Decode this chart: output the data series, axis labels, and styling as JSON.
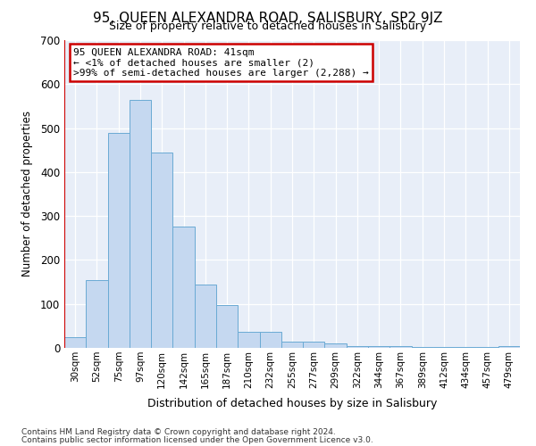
{
  "title": "95, QUEEN ALEXANDRA ROAD, SALISBURY, SP2 9JZ",
  "subtitle": "Size of property relative to detached houses in Salisbury",
  "xlabel": "Distribution of detached houses by size in Salisbury",
  "ylabel": "Number of detached properties",
  "categories": [
    "30sqm",
    "52sqm",
    "75sqm",
    "97sqm",
    "120sqm",
    "142sqm",
    "165sqm",
    "187sqm",
    "210sqm",
    "232sqm",
    "255sqm",
    "277sqm",
    "299sqm",
    "322sqm",
    "344sqm",
    "367sqm",
    "389sqm",
    "412sqm",
    "434sqm",
    "457sqm",
    "479sqm"
  ],
  "bar_heights": [
    25,
    155,
    490,
    565,
    445,
    275,
    145,
    97,
    37,
    37,
    15,
    15,
    10,
    5,
    5,
    5,
    2,
    2,
    2,
    2,
    5
  ],
  "bar_color": "#c5d8f0",
  "bar_edge_color": "#6aaad4",
  "background_color": "#e8eef8",
  "annotation_line1": "95 QUEEN ALEXANDRA ROAD: 41sqm",
  "annotation_line2": "← <1% of detached houses are smaller (2)",
  "annotation_line3": ">99% of semi-detached houses are larger (2,288) →",
  "annotation_box_color": "#ffffff",
  "annotation_box_edge": "#cc0000",
  "vline_color": "#cc0000",
  "ylim": [
    0,
    700
  ],
  "yticks": [
    0,
    100,
    200,
    300,
    400,
    500,
    600,
    700
  ],
  "footer1": "Contains HM Land Registry data © Crown copyright and database right 2024.",
  "footer2": "Contains public sector information licensed under the Open Government Licence v3.0."
}
